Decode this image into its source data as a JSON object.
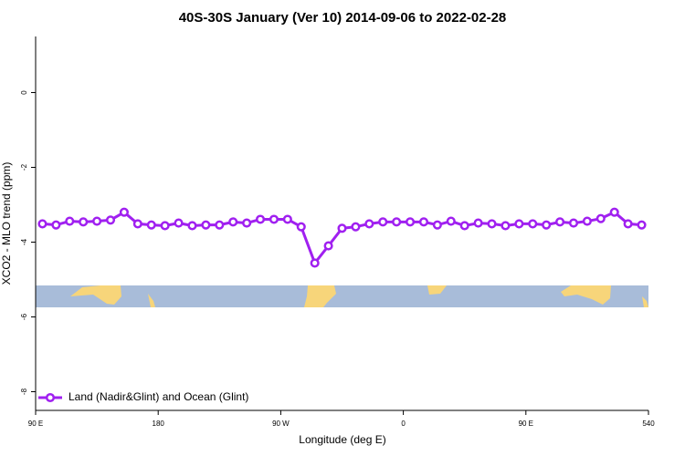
{
  "chart_data": {
    "type": "line",
    "title": "40S-30S January (Ver 10)   2014-09-06 to 2022-02-28",
    "x_label": "Longitude (deg E)",
    "y_label": "XCO2 - MLO trend (ppm)",
    "x": [
      95,
      105,
      115,
      125,
      135,
      145,
      155,
      165,
      175,
      185,
      195,
      205,
      215,
      225,
      235,
      245,
      255,
      265,
      275,
      285,
      295,
      305,
      315,
      325,
      335,
      345,
      355,
      365,
      375,
      385,
      395,
      405,
      415,
      425,
      435,
      445,
      455,
      465,
      475,
      485,
      495,
      505,
      515,
      525,
      535
    ],
    "series": [
      {
        "name": "Land (Nadir&Glint) and Ocean (Glint)",
        "color": "#a020f0",
        "values": [
          -3.51,
          -3.54,
          -3.44,
          -3.46,
          -3.44,
          -3.41,
          -3.2,
          -3.51,
          -3.54,
          -3.56,
          -3.49,
          -3.56,
          -3.54,
          -3.54,
          -3.46,
          -3.49,
          -3.39,
          -3.39,
          -3.39,
          -3.59,
          -4.56,
          -4.1,
          -3.63,
          -3.59,
          -3.51,
          -3.46,
          -3.46,
          -3.46,
          -3.46,
          -3.54,
          -3.44,
          -3.56,
          -3.49,
          -3.51,
          -3.56,
          -3.51,
          -3.51,
          -3.54,
          -3.46,
          -3.49,
          -3.44,
          -3.37,
          -3.2,
          -3.51,
          -3.54
        ]
      }
    ],
    "xlim": [
      90,
      540
    ],
    "xticks": [
      {
        "value": 90,
        "label": "90 E"
      },
      180,
      {
        "value": 270,
        "label": "90 W"
      },
      {
        "value": 360,
        "label": "0"
      },
      {
        "value": 450,
        "label": "90 E"
      },
      540
    ],
    "ylim": [
      -8.5,
      1.5
    ],
    "yticks": [
      0,
      -2,
      -4,
      -6,
      -8
    ],
    "legend_position": "bottom-left"
  }
}
